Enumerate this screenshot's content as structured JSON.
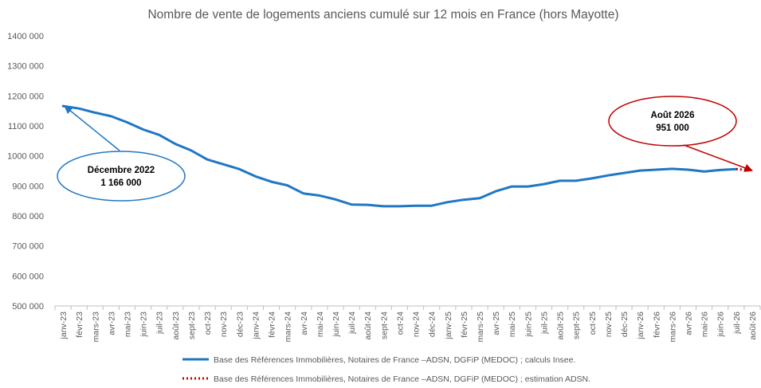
{
  "chart_data": {
    "type": "line",
    "title": "Nombre de vente de logements anciens cumulé sur 12 mois en France (hors Mayotte)",
    "xlabel": "",
    "ylabel": "",
    "ylim": [
      500000,
      1400000
    ],
    "yticks": [
      500000,
      600000,
      700000,
      800000,
      900000,
      1000000,
      1100000,
      1200000,
      1300000,
      1400000
    ],
    "ytick_labels": [
      "500 000",
      "600 000",
      "700 000",
      "800 000",
      "900 000",
      "1000 000",
      "1100 000",
      "1200 000",
      "1300 000",
      "1400 000"
    ],
    "grid": false,
    "legend_position": "bottom",
    "categories": [
      "janv-23",
      "févr-23",
      "mars-23",
      "avr-23",
      "mai-23",
      "juin-23",
      "juil-23",
      "août-23",
      "sept-23",
      "oct-23",
      "nov-23",
      "déc-23",
      "janv-24",
      "févr-24",
      "mars-24",
      "avr-24",
      "mai-24",
      "juin-24",
      "juil-24",
      "août-24",
      "sept-24",
      "oct-24",
      "nov-24",
      "déc-24",
      "janv-25",
      "févr-25",
      "mars-25",
      "avr-25",
      "mai-25",
      "juin-25",
      "juil-25",
      "août-25",
      "sept-25",
      "oct-25",
      "nov-25",
      "déc-25",
      "janv-26",
      "févr-26",
      "mars-26",
      "avr-26",
      "mai-26",
      "juin-26",
      "juil-26",
      "août-26"
    ],
    "series": [
      {
        "name": "Base des Références Immobilières, Notaires de France –ADSN, DGFiP (MEDOC) ; calculs Insee.",
        "color": "#1F77C4",
        "style": "solid",
        "values": [
          1166000,
          1158000,
          1144000,
          1132000,
          1112000,
          1088000,
          1070000,
          1040000,
          1018000,
          988000,
          972000,
          956000,
          932000,
          914000,
          902000,
          875000,
          868000,
          855000,
          838000,
          837000,
          832000,
          832000,
          834000,
          834000,
          846000,
          854000,
          859000,
          882000,
          898000,
          898000,
          906000,
          917000,
          917000,
          925000,
          935000,
          943000,
          951000,
          954000,
          957000,
          954000,
          948000,
          953000,
          956000,
          null
        ]
      },
      {
        "name": "Base des Références Immobilières, Notaires de France –ADSN, DGFiP (MEDOC) ; estimation ADSN.",
        "color": "#C00000",
        "style": "dotted",
        "values": [
          null,
          null,
          null,
          null,
          null,
          null,
          null,
          null,
          null,
          null,
          null,
          null,
          null,
          null,
          null,
          null,
          null,
          null,
          null,
          null,
          null,
          null,
          null,
          null,
          null,
          null,
          null,
          null,
          null,
          null,
          null,
          null,
          null,
          null,
          null,
          null,
          null,
          null,
          null,
          null,
          null,
          null,
          956000,
          951000
        ]
      }
    ],
    "annotations": [
      {
        "line1": "Décembre 2022",
        "line2": "1 166 000",
        "color": "#1F77C4",
        "category": "janv-23",
        "value": 1166000
      },
      {
        "line1": "Août 2026",
        "line2": "951 000",
        "color": "#C00000",
        "category": "août-26",
        "value": 951000
      }
    ]
  }
}
